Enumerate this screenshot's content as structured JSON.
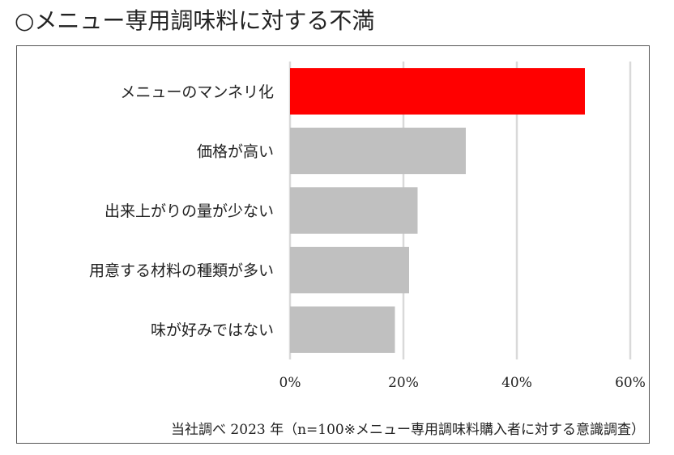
{
  "header": {
    "title": "○メニュー専用調味料に対する不満"
  },
  "footnote": "当社調べ 2023 年（n=100※メニュー専用調味料購入者に対する意識調査）",
  "colors": {
    "highlight": "#ff0000",
    "bar": "#c0c0c0",
    "grid": "#d9d9d9"
  },
  "chart_data": {
    "type": "bar",
    "orientation": "horizontal",
    "categories": [
      "メニューのマンネリ化",
      "価格が高い",
      "出来上がりの量が少ない",
      "用意する材料の種類が多い",
      "味が好みではない"
    ],
    "values": [
      52,
      31,
      22.5,
      21,
      18.5
    ],
    "unit": "%",
    "xlim": [
      0,
      60
    ],
    "xticks": [
      "0%",
      "20%",
      "40%",
      "60%"
    ],
    "highlight_index": 0,
    "grid": true,
    "legend": "none"
  }
}
